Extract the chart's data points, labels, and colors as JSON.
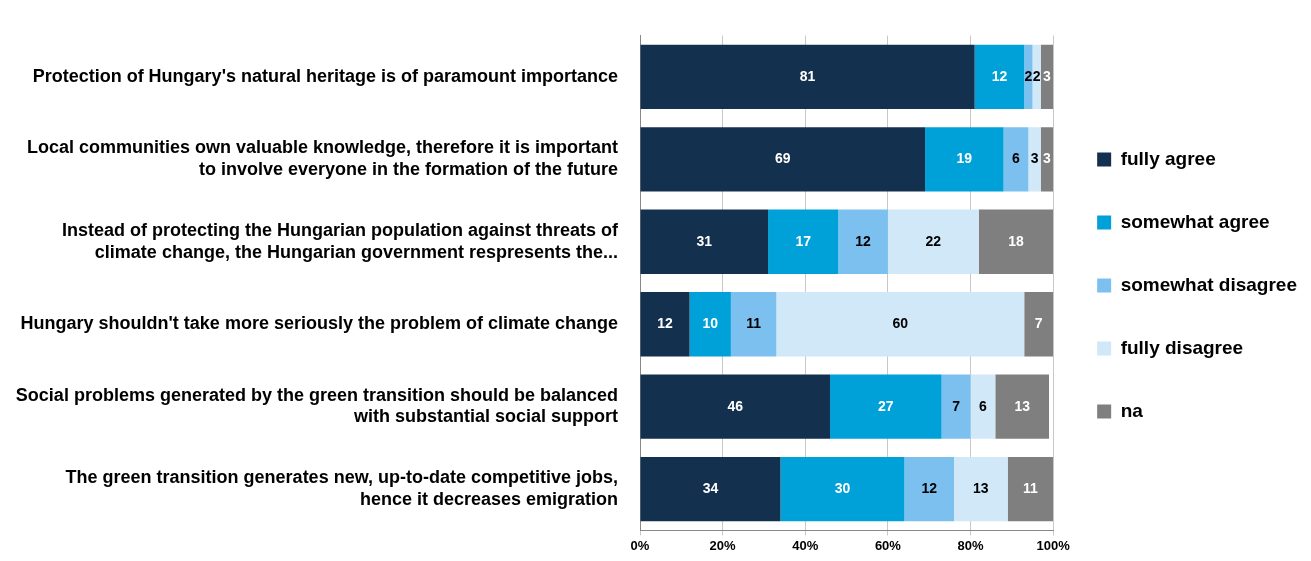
{
  "chart_data": {
    "type": "bar",
    "orientation": "horizontal",
    "stacked": true,
    "data_labels": true,
    "grid": "x",
    "legend": "right",
    "categories": [
      "Protection of Hungary's natural heritage is of paramount importance",
      "Local communities own valuable knowledge, therefore it is important to involve everyone in the formation of the future",
      "Instead of protecting the Hungarian population against threats of climate change, the Hungarian government respresents the...",
      "Hungary shouldn't take more seriously the problem of climate change",
      "Social problems generated by the green transition should be balanced with substantial social support",
      "The green transition generates new, up-to-date competitive jobs, hence it decreases emigration"
    ],
    "series": [
      {
        "name": "fully agree",
        "color": "#14304f",
        "values": [
          81,
          69,
          31,
          12,
          46,
          34
        ]
      },
      {
        "name": "somewhat agree",
        "color": "#00a0d8",
        "values": [
          12,
          19,
          17,
          10,
          27,
          30
        ]
      },
      {
        "name": "somewhat disagree",
        "color": "#7cc0f0",
        "values": [
          2,
          6,
          12,
          11,
          7,
          12
        ]
      },
      {
        "name": "fully disagree",
        "color": "#d0e8f8",
        "values": [
          2,
          3,
          22,
          60,
          6,
          13
        ]
      },
      {
        "name": "na",
        "color": "#7f7f7f",
        "values": [
          3,
          3,
          18,
          7,
          13,
          11
        ]
      }
    ],
    "xlim": [
      0,
      100
    ],
    "xticks": [
      {
        "value": 0,
        "label": "0%"
      },
      {
        "value": 20,
        "label": "20%"
      },
      {
        "value": 40,
        "label": "40%"
      },
      {
        "value": 60,
        "label": "60%"
      },
      {
        "value": 80,
        "label": "80%"
      },
      {
        "value": 100,
        "label": "100%"
      }
    ]
  }
}
